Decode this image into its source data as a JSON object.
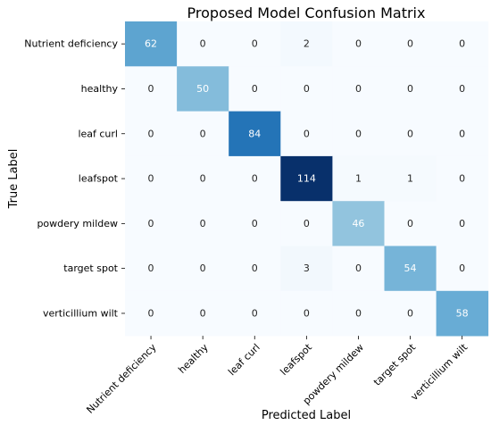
{
  "chart_data": {
    "type": "heatmap",
    "title": "Proposed Model Confusion Matrix",
    "xlabel": "Predicted Label",
    "ylabel": "True Label",
    "categories": [
      "Nutrient deficiency",
      "healthy",
      "leaf curl",
      "leafspot",
      "powdery mildew",
      "target spot",
      "verticillium wilt"
    ],
    "values": [
      [
        62,
        0,
        0,
        2,
        0,
        0,
        0
      ],
      [
        0,
        50,
        0,
        0,
        0,
        0,
        0
      ],
      [
        0,
        0,
        84,
        0,
        0,
        0,
        0
      ],
      [
        0,
        0,
        0,
        114,
        1,
        1,
        0
      ],
      [
        0,
        0,
        0,
        0,
        46,
        0,
        0
      ],
      [
        0,
        0,
        0,
        3,
        0,
        54,
        0
      ],
      [
        0,
        0,
        0,
        0,
        0,
        0,
        58
      ]
    ],
    "colormap": "Blues",
    "value_range": [
      0,
      114
    ],
    "colorbar": false
  }
}
